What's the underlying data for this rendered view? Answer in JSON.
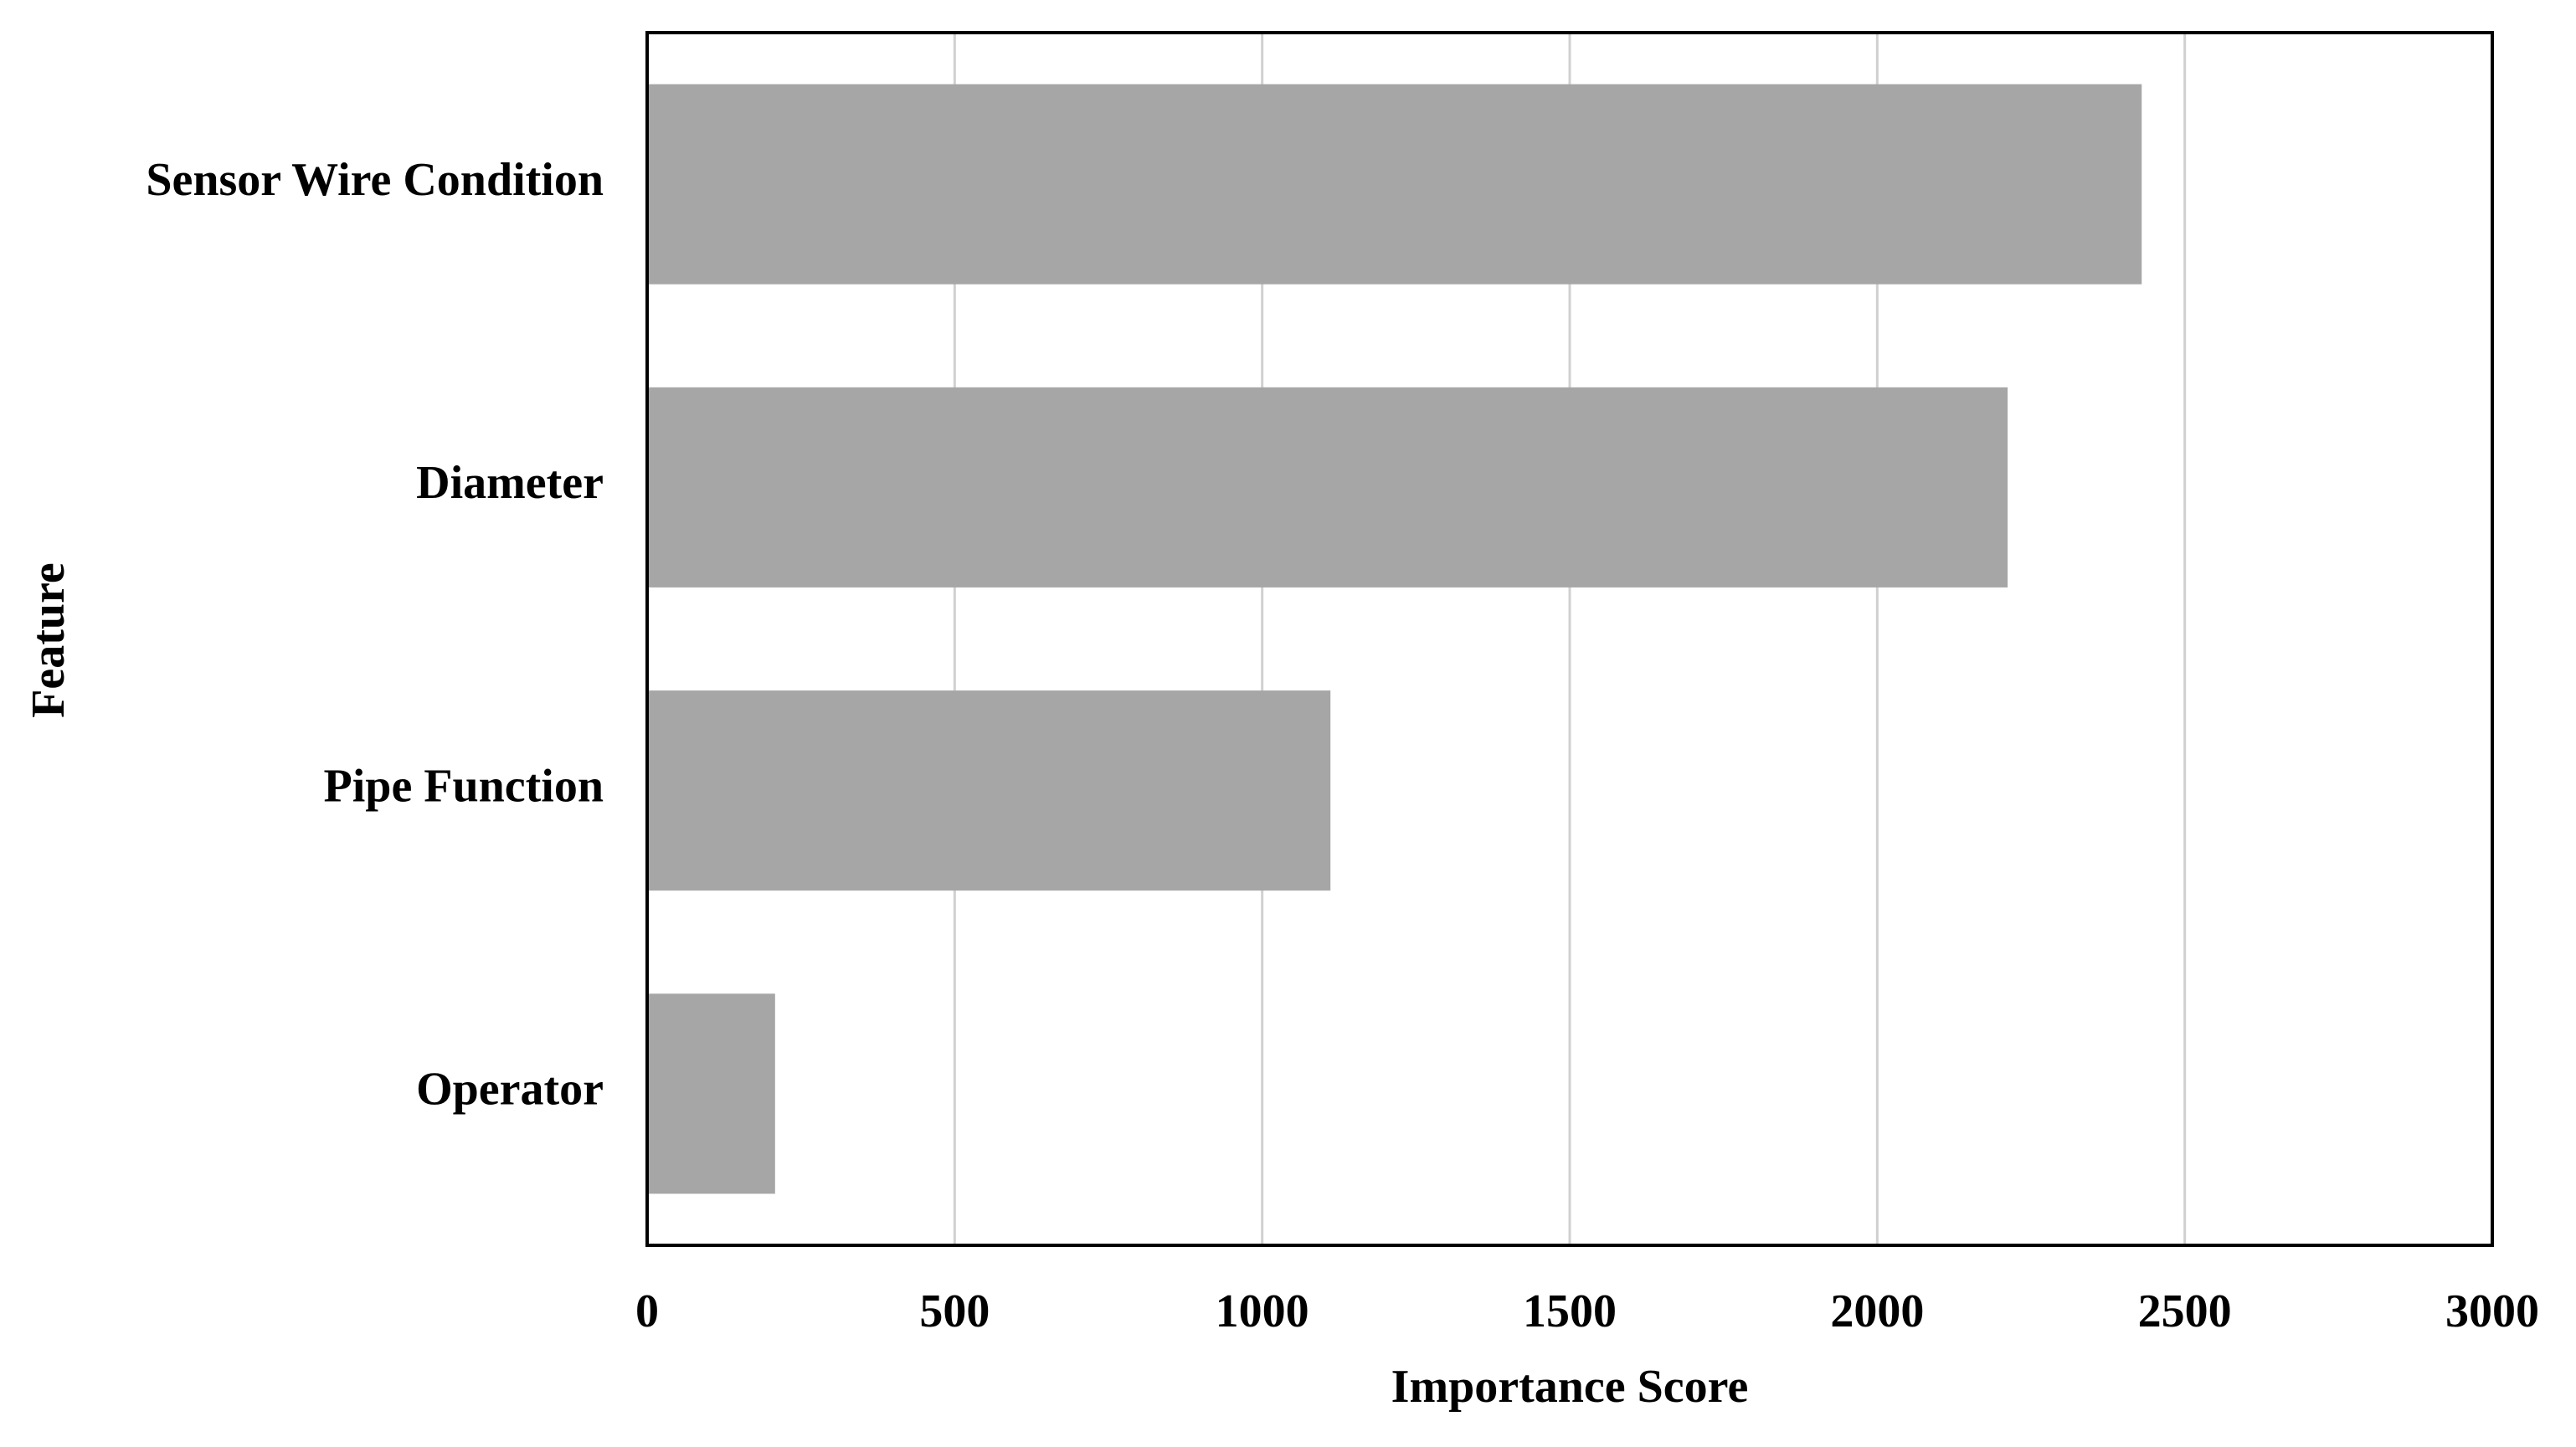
{
  "chart_data": {
    "type": "barh",
    "categories": [
      "Sensor Wire Condition",
      "Diameter",
      "Pipe Function",
      "Operator"
    ],
    "values": [
      2430,
      2212,
      1111,
      208
    ],
    "color": "#a6a6a6",
    "xlabel": "Importance Score",
    "ylabel": "Feature",
    "xlim": [
      0,
      3000
    ],
    "xticks": [
      0,
      500,
      1000,
      1500,
      2000,
      2500,
      3000
    ],
    "grid": true
  }
}
